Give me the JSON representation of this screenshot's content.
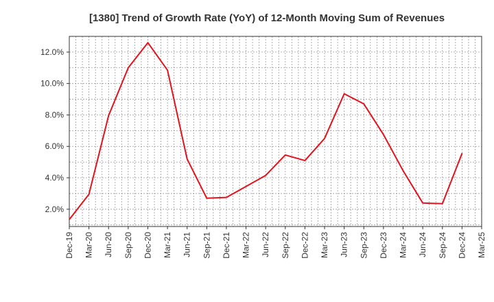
{
  "chart_data": {
    "type": "line",
    "title": "[1380]  Trend of Growth Rate (YoY) of 12-Month Moving Sum of Revenues",
    "xlabel": "",
    "ylabel": "",
    "x_ticks": [
      "Dec-19",
      "Mar-20",
      "Jun-20",
      "Sep-20",
      "Dec-20",
      "Mar-21",
      "Jun-21",
      "Sep-21",
      "Dec-21",
      "Mar-22",
      "Jun-22",
      "Sep-22",
      "Dec-22",
      "Mar-23",
      "Jun-23",
      "Sep-23",
      "Dec-23",
      "Mar-24",
      "Jun-24",
      "Sep-24",
      "Dec-24",
      "Mar-25"
    ],
    "y_ticks": [
      "2.0%",
      "4.0%",
      "6.0%",
      "8.0%",
      "10.0%",
      "12.0%"
    ],
    "ylim": [
      0.9,
      13.0
    ],
    "grid": true,
    "series": [
      {
        "color": "#e0141e",
        "x": [
          "Dec-19",
          "Mar-20",
          "Jun-20",
          "Sep-20",
          "Dec-20",
          "Mar-21",
          "Jun-21",
          "Sep-21",
          "Dec-21",
          "Mar-22",
          "Jun-22",
          "Sep-22",
          "Dec-22",
          "Mar-23",
          "Jun-23",
          "Sep-23",
          "Dec-23",
          "Mar-24",
          "Jun-24",
          "Sep-24",
          "Dec-24"
        ],
        "values": [
          1.35,
          2.95,
          7.95,
          11.0,
          12.6,
          10.85,
          5.2,
          2.7,
          2.75,
          3.45,
          4.15,
          5.45,
          5.1,
          6.5,
          9.35,
          8.7,
          6.75,
          4.45,
          2.4,
          2.35,
          5.55
        ]
      }
    ]
  }
}
